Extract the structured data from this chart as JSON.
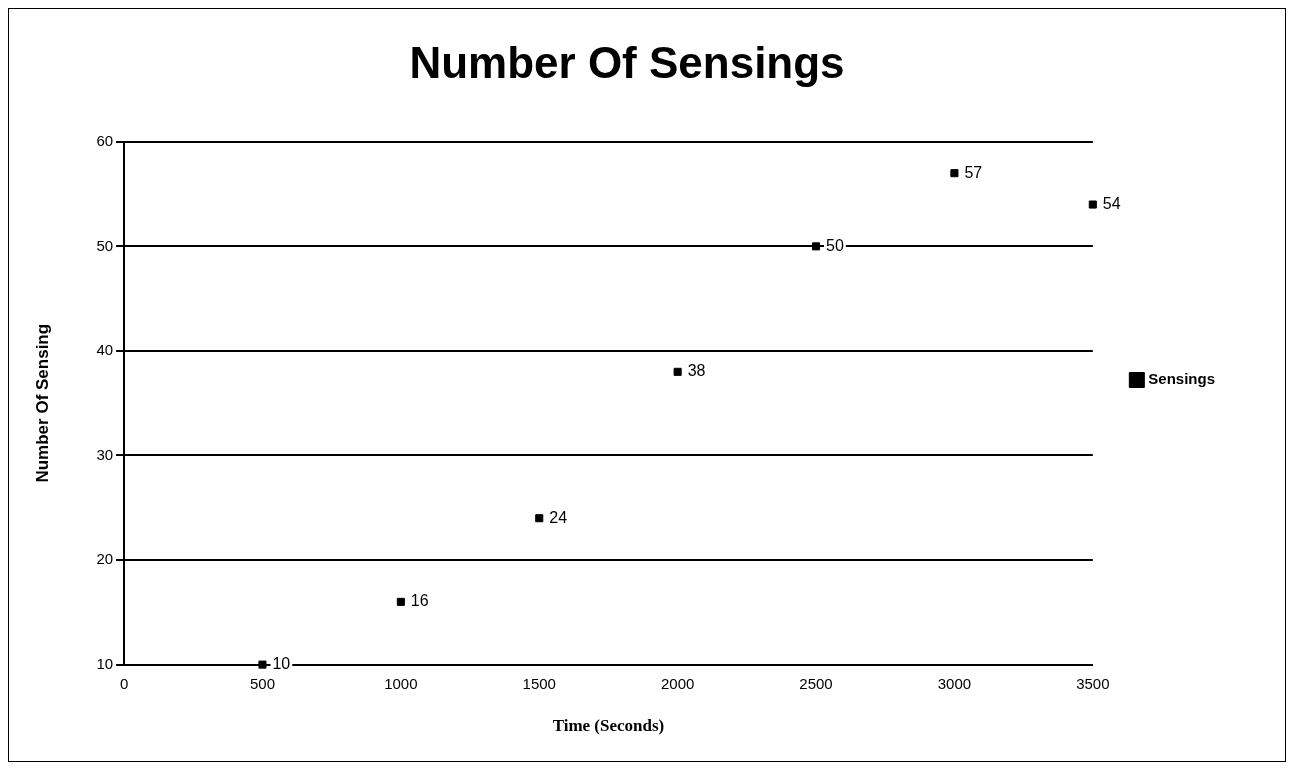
{
  "chart_data": {
    "type": "scatter",
    "title": "Number Of Sensings",
    "xlabel": "Time (Seconds)",
    "ylabel": "Number Of Sensing",
    "x": [
      500,
      1000,
      1500,
      2000,
      2500,
      3000,
      3500
    ],
    "series": [
      {
        "name": "Sensings",
        "color": "#000000",
        "values": [
          10,
          16,
          24,
          38,
          50,
          57,
          54
        ]
      }
    ],
    "xlim": [
      0,
      3500
    ],
    "xticks": [
      0,
      500,
      1000,
      1500,
      2000,
      2500,
      3000,
      3500
    ],
    "ylim": [
      10,
      60
    ],
    "yticks": [
      10,
      20,
      30,
      40,
      50,
      60
    ],
    "grid": "y",
    "legend": "right",
    "marker": "square",
    "data_labels": true
  }
}
